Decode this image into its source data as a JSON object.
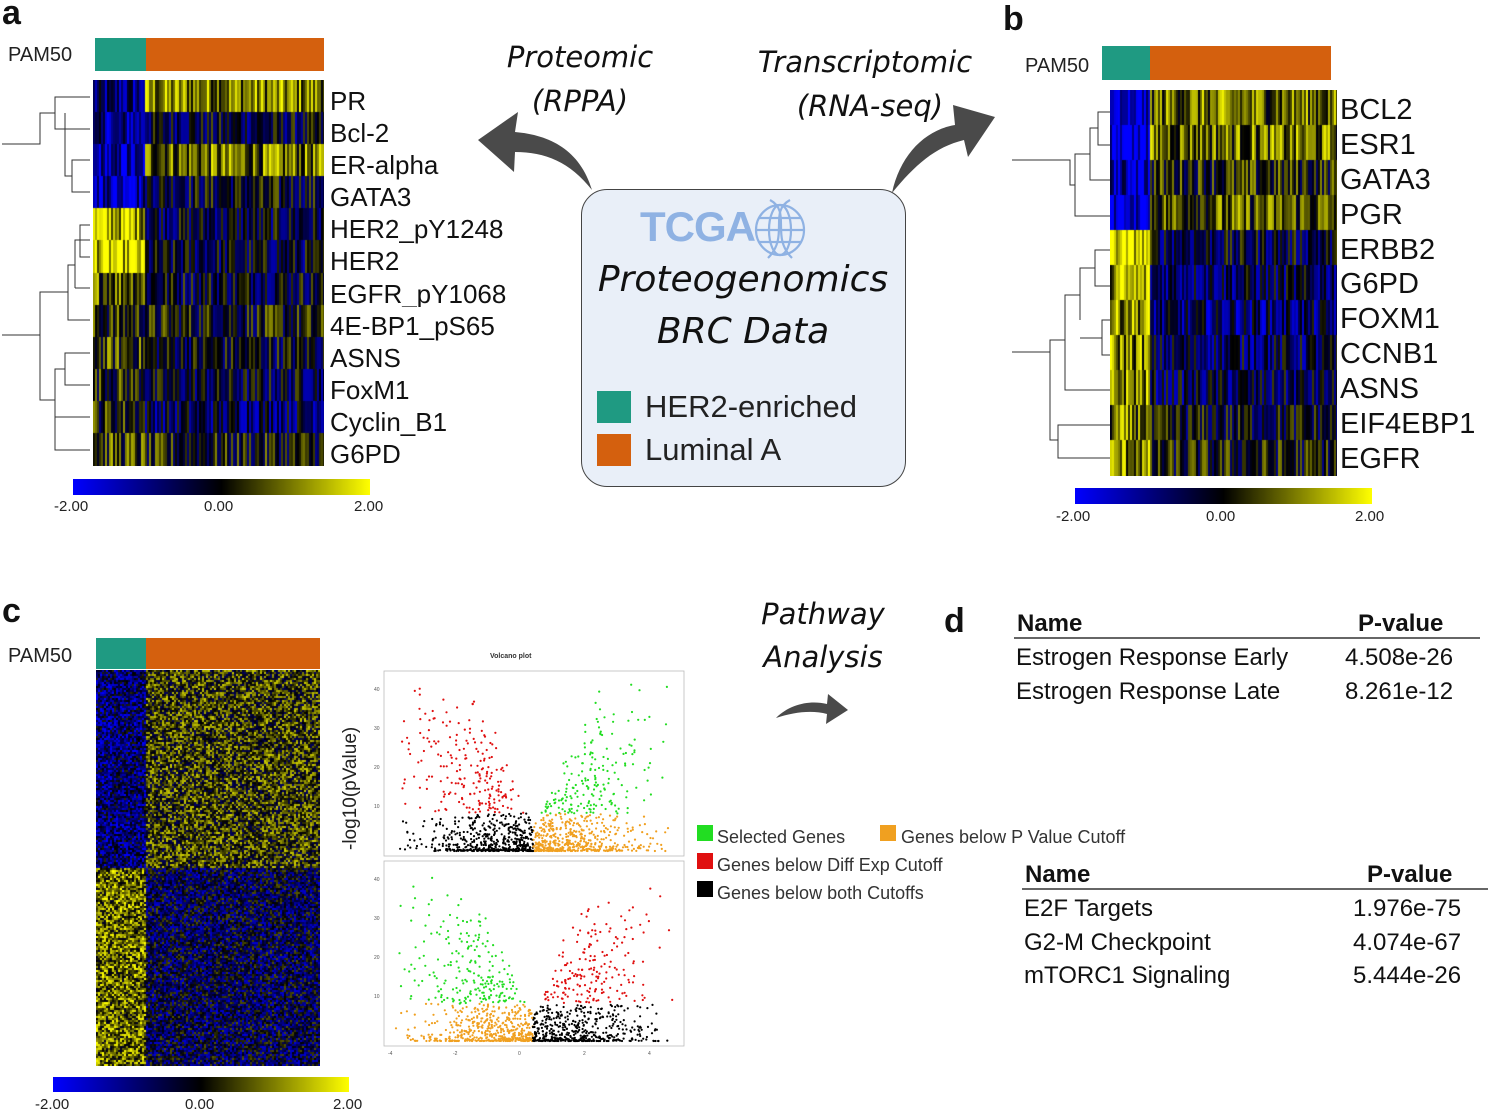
{
  "panels": {
    "a": "a",
    "b": "b",
    "c": "c",
    "d": "d"
  },
  "pam50_label": "PAM50",
  "colors": {
    "her2": "#1f9a82",
    "luminal": "#d4600e",
    "box_bg": "#e9eff8",
    "tcga": "#8fb2e3"
  },
  "panel_a": {
    "genes": [
      "PR",
      "Bcl-2",
      "ER-alpha",
      "GATA3",
      "HER2_pY1248",
      "HER2",
      "EGFR_pY1068",
      "4E-BP1_pS65",
      "ASNS",
      "FoxM1",
      "Cyclin_B1",
      "G6PD"
    ],
    "scale": [
      "-2.00",
      "0.00",
      "2.00"
    ]
  },
  "panel_b": {
    "genes": [
      "BCL2",
      "ESR1",
      "GATA3",
      "PGR",
      "ERBB2",
      "G6PD",
      "FOXM1",
      "CCNB1",
      "ASNS",
      "EIF4EBP1",
      "EGFR"
    ],
    "scale": [
      "-2.00",
      "0.00",
      "2.00"
    ]
  },
  "panel_c": {
    "scale": [
      "-2.00",
      "0.00",
      "2.00"
    ],
    "volcano_title": "Volcano plot",
    "y_axis_label": "-log10(pValue)",
    "top_y_ticks": [
      "40",
      "30",
      "20",
      "10"
    ],
    "bottom_y_ticks": [
      "40",
      "30",
      "20",
      "10"
    ],
    "x_ticks": [
      "-4",
      "-2",
      "0",
      "2",
      "4"
    ],
    "legend": [
      {
        "label": "Selected Genes",
        "color": "#22dd22"
      },
      {
        "label": "Genes below P Value Cutoff",
        "color": "#f0a020"
      },
      {
        "label": "Genes below Diff Exp Cutoff",
        "color": "#e01010"
      },
      {
        "label": "Genes below both Cutoffs",
        "color": "#000000"
      }
    ]
  },
  "center": {
    "tcga": "TCGA",
    "line1": "Proteogenomics",
    "line2": "BRC Data",
    "legend": [
      {
        "label": "HER2-enriched",
        "color": "#1f9a82"
      },
      {
        "label": "Luminal A",
        "color": "#d4600e"
      }
    ]
  },
  "arrows": {
    "proteomic_line1": "Proteomic",
    "proteomic_line2": "(RPPA)",
    "transcriptomic_line1": "Transcriptomic",
    "transcriptomic_line2": "(RNA-seq)",
    "pathway_line1": "Pathway",
    "pathway_line2": "Analysis"
  },
  "table_top": {
    "headers": [
      "Name",
      "P-value"
    ],
    "rows": [
      [
        "Estrogen Response Early",
        "4.508e-26"
      ],
      [
        "Estrogen Response Late",
        "8.261e-12"
      ]
    ]
  },
  "table_bottom": {
    "headers": [
      "Name",
      "P-value"
    ],
    "rows": [
      [
        "E2F Targets",
        "1.976e-75"
      ],
      [
        "G2-M Checkpoint",
        "4.074e-67"
      ],
      [
        "mTORC1 Signaling",
        "5.444e-26"
      ]
    ]
  }
}
